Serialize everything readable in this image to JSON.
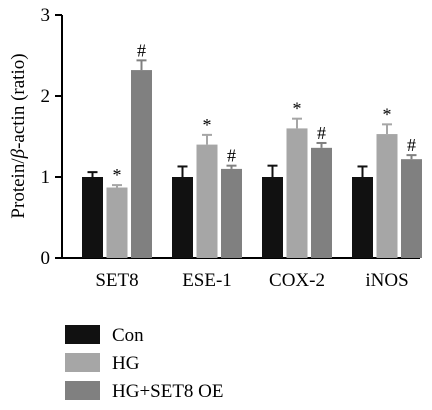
{
  "chart_data": {
    "type": "bar",
    "categories": [
      "SET8",
      "ESE-1",
      "COX-2",
      "iNOS"
    ],
    "series": [
      {
        "name": "Con",
        "color": "#111111",
        "values": [
          1.0,
          1.0,
          1.0,
          1.0
        ],
        "errors": [
          0.06,
          0.13,
          0.14,
          0.13
        ],
        "marks": [
          "",
          "",
          "",
          ""
        ]
      },
      {
        "name": "HG",
        "color": "#a6a6a6",
        "values": [
          0.87,
          1.4,
          1.6,
          1.53
        ],
        "errors": [
          0.03,
          0.12,
          0.12,
          0.12
        ],
        "marks": [
          "*",
          "*",
          "*",
          "*"
        ]
      },
      {
        "name": "HG+SET8 OE",
        "color": "#808080",
        "values": [
          2.32,
          1.1,
          1.36,
          1.22
        ],
        "errors": [
          0.12,
          0.04,
          0.06,
          0.05
        ],
        "marks": [
          "#",
          "#",
          "#",
          "#"
        ]
      }
    ],
    "ylabel_pre": "Protein/",
    "ylabel_beta": "β",
    "ylabel_post": "-actin (ratio)",
    "ylim": [
      0,
      3
    ],
    "yticks": [
      0,
      1,
      2,
      3
    ],
    "legend_position": "bottom-left"
  }
}
